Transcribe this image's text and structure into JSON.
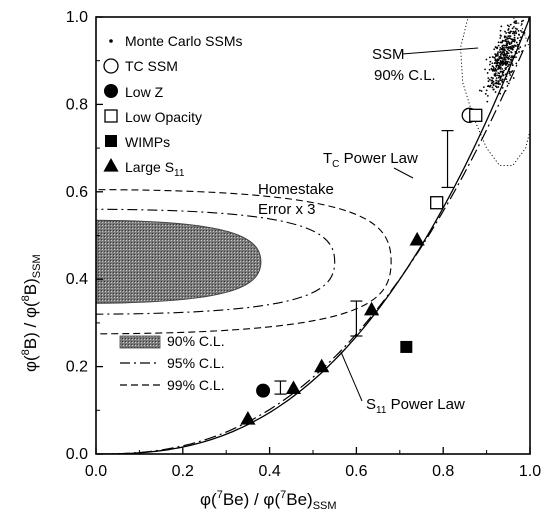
{
  "chart_data": {
    "type": "scatter",
    "xlim": [
      0.0,
      1.0
    ],
    "ylim": [
      0.0,
      1.0
    ],
    "x_ticks": [
      "0.0",
      "0.2",
      "0.4",
      "0.6",
      "0.8",
      "1.0"
    ],
    "y_ticks": [
      "0.0",
      "0.2",
      "0.4",
      "0.6",
      "0.8",
      "1.0"
    ],
    "xlabel": {
      "main": "φ(",
      "sup": "7",
      "mid": "Be) / φ(",
      "sup2": "7",
      "end": "Be)",
      "sub": "SSM"
    },
    "ylabel": {
      "main": "φ(",
      "sup": "8",
      "mid": "B) / φ(",
      "sup2": "8",
      "end": "B)",
      "sub": "SSM"
    },
    "grid": false,
    "legend_top": [
      {
        "marker": "small-dot",
        "label": "Monte Carlo SSMs"
      },
      {
        "marker": "open-circle",
        "label": "TC SSM"
      },
      {
        "marker": "filled-circle",
        "label": "Low Z"
      },
      {
        "marker": "open-square",
        "label": "Low Opacity"
      },
      {
        "marker": "filled-square",
        "label": "WIMPs"
      },
      {
        "marker": "filled-triangle",
        "label": "Large S",
        "sub": "11"
      }
    ],
    "legend_bottom": [
      {
        "style": "shaded",
        "label": "90% C.L."
      },
      {
        "style": "dash-dot",
        "label": "95% C.L."
      },
      {
        "style": "dashed",
        "label": "99% C.L."
      }
    ],
    "annotations": {
      "ssm": [
        "SSM",
        "90% C.L."
      ],
      "homestake": [
        "Homestake",
        "Error x 3"
      ],
      "tc_law": {
        "main": "T",
        "sub": "C",
        "rest": " Power Law"
      },
      "s11_law": {
        "main": "S",
        "sub": "11",
        "rest": " Power Law"
      }
    },
    "points": {
      "tc_ssm": {
        "x": 0.86,
        "y": 0.775
      },
      "low_z": {
        "x": 0.385,
        "y": 0.145
      },
      "low_opacity": [
        {
          "x": 0.785,
          "y": 0.575
        },
        {
          "x": 0.875,
          "y": 0.775
        }
      ],
      "wimps": {
        "x": 0.715,
        "y": 0.245
      },
      "large_s11": [
        {
          "x": 0.35,
          "y": 0.08
        },
        {
          "x": 0.455,
          "y": 0.15
        },
        {
          "x": 0.52,
          "y": 0.2
        },
        {
          "x": 0.635,
          "y": 0.33
        },
        {
          "x": 0.74,
          "y": 0.49
        }
      ]
    },
    "error_bars": [
      {
        "x": 0.425,
        "y": 0.152,
        "ylo": 0.137,
        "yhi": 0.167
      },
      {
        "x": 0.6,
        "y": 0.31,
        "ylo": 0.27,
        "yhi": 0.35
      },
      {
        "x": 0.81,
        "y": 0.68,
        "ylo": 0.61,
        "yhi": 0.74
      }
    ],
    "tc_power_law": {
      "exponent": 2.57
    },
    "s11_power_law": {
      "exponent": 2.45,
      "scale": 0.96
    },
    "contours": {
      "center_y": 0.44,
      "cl90": {
        "tip_x": 0.38,
        "half_height": 0.095
      },
      "cl95": {
        "tip_x": 0.55,
        "half_height": 0.12
      },
      "cl99": {
        "tip_x": 0.68,
        "half_height": 0.165
      }
    },
    "monte_carlo_region": {
      "x_min": 0.82,
      "x_max": 1.0,
      "y_min": 0.67,
      "y_max": 1.0,
      "count": 420
    }
  }
}
